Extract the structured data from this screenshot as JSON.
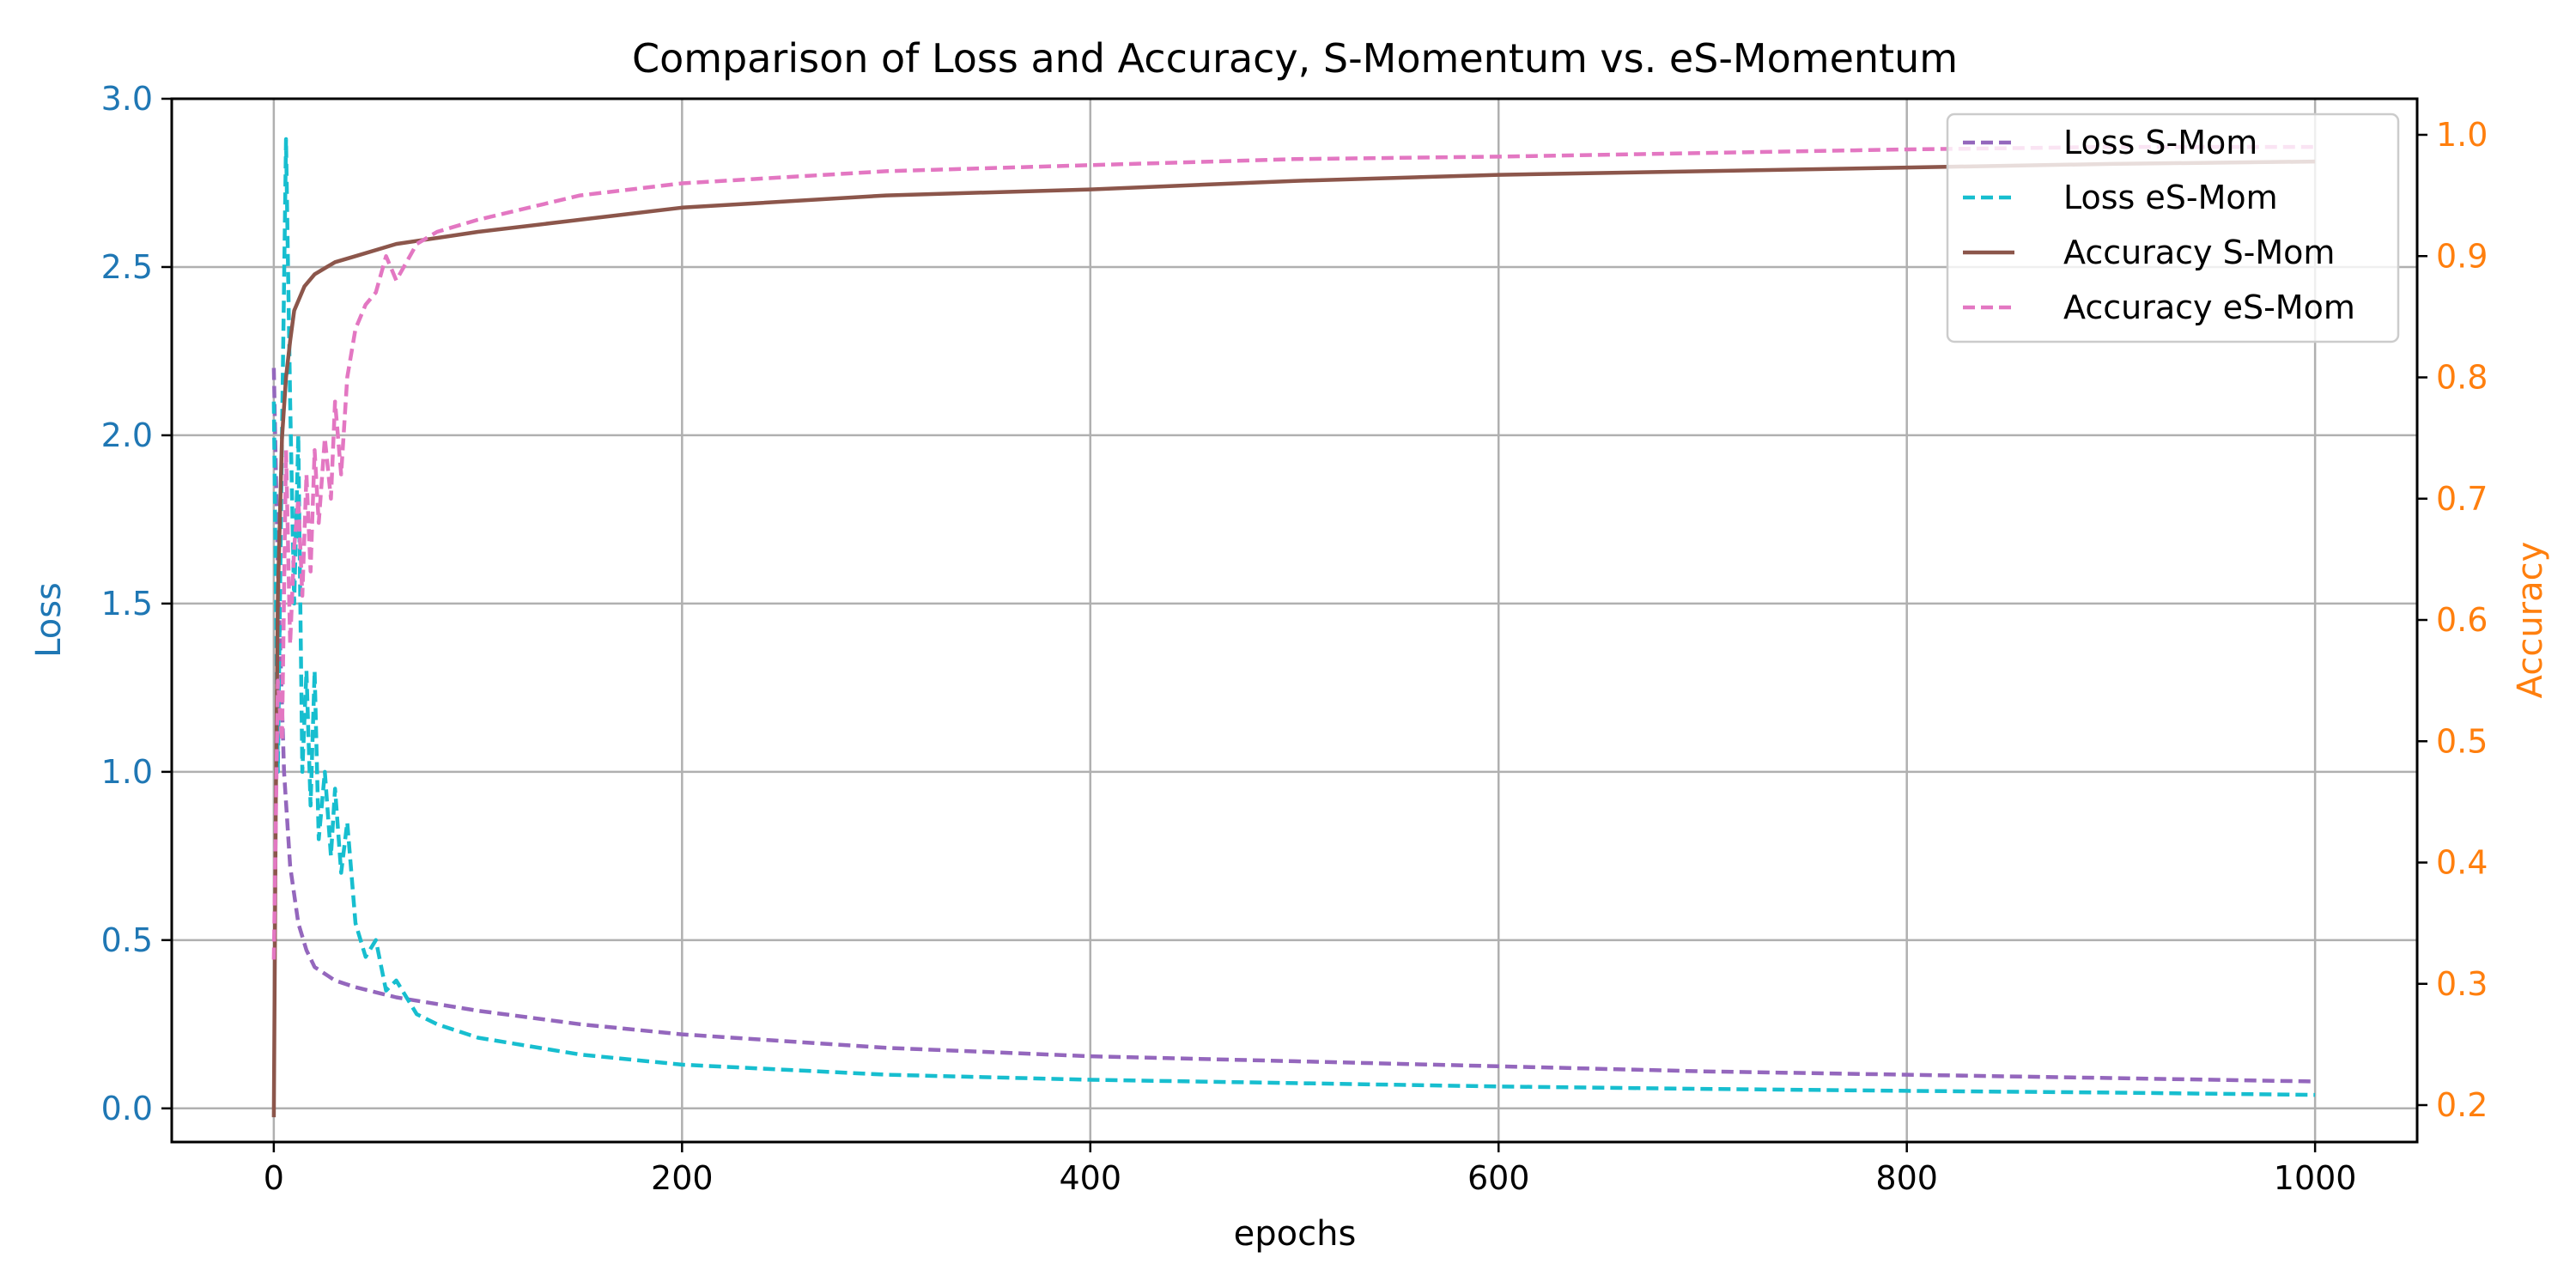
{
  "chart_data": {
    "type": "line",
    "title": "Comparison of Loss and Accuracy, S-Momentum vs. eS-Momentum",
    "xlabel": "epochs",
    "ylabel_left": "Loss",
    "ylabel_right": "Accuracy",
    "xlim": [
      -50,
      1050
    ],
    "ylim_left": [
      -0.1,
      3.0
    ],
    "ylim_right": [
      0.2,
      1.0
    ],
    "x_ticks": [
      0,
      200,
      400,
      600,
      800,
      1000
    ],
    "y_left_ticks": [
      "0.0",
      "0.5",
      "1.0",
      "1.5",
      "2.0",
      "2.5",
      "3.0"
    ],
    "y_right_ticks": [
      "0.2",
      "0.3",
      "0.4",
      "0.5",
      "0.6",
      "0.7",
      "0.8",
      "0.9",
      "1.0"
    ],
    "grid": true,
    "legend_position": "upper-right",
    "colors": {
      "left_axis": "#1f77b4",
      "right_axis": "#ff7f0e",
      "loss_s_mom": "#9467bd",
      "loss_es_mom": "#17becf",
      "acc_s_mom": "#8c564b",
      "acc_es_mom": "#e377c2"
    },
    "series": [
      {
        "name": "Loss  S-Mom",
        "axis": "left",
        "style": "dashed",
        "color": "#9467bd",
        "x": [
          0,
          2,
          5,
          8,
          12,
          16,
          20,
          30,
          40,
          60,
          80,
          100,
          150,
          200,
          300,
          400,
          500,
          600,
          700,
          800,
          900,
          1000
        ],
        "y": [
          2.2,
          1.6,
          1.0,
          0.72,
          0.55,
          0.47,
          0.42,
          0.38,
          0.36,
          0.33,
          0.31,
          0.29,
          0.25,
          0.22,
          0.18,
          0.155,
          0.14,
          0.125,
          0.11,
          0.1,
          0.09,
          0.08
        ]
      },
      {
        "name": "Loss eS-Mom",
        "axis": "left",
        "style": "dashed",
        "color": "#17becf",
        "x": [
          0,
          2,
          4,
          6,
          8,
          10,
          12,
          14,
          16,
          18,
          20,
          22,
          25,
          28,
          30,
          33,
          36,
          40,
          45,
          50,
          55,
          60,
          70,
          80,
          100,
          150,
          200,
          300,
          400,
          500,
          600,
          700,
          800,
          900,
          1000
        ],
        "y": [
          2.1,
          1.0,
          2.0,
          2.88,
          2.1,
          1.5,
          2.0,
          1.0,
          1.3,
          0.9,
          1.3,
          0.8,
          1.0,
          0.75,
          0.95,
          0.7,
          0.85,
          0.55,
          0.45,
          0.5,
          0.35,
          0.38,
          0.28,
          0.25,
          0.21,
          0.16,
          0.13,
          0.1,
          0.085,
          0.075,
          0.065,
          0.058,
          0.052,
          0.047,
          0.04
        ]
      },
      {
        "name": "Accuracy  S-Mom",
        "axis": "right",
        "style": "solid",
        "color": "#8c564b",
        "x": [
          0,
          1,
          2,
          4,
          6,
          8,
          10,
          15,
          20,
          30,
          40,
          60,
          80,
          100,
          150,
          200,
          300,
          400,
          500,
          600,
          700,
          800,
          900,
          1000
        ],
        "y": [
          0.19,
          0.45,
          0.62,
          0.75,
          0.8,
          0.83,
          0.855,
          0.875,
          0.885,
          0.895,
          0.9,
          0.91,
          0.915,
          0.92,
          0.93,
          0.94,
          0.95,
          0.955,
          0.962,
          0.967,
          0.97,
          0.973,
          0.976,
          0.978
        ]
      },
      {
        "name": "Accuracy eS-Mom",
        "axis": "right",
        "style": "dashed",
        "color": "#e377c2",
        "x": [
          0,
          2,
          4,
          6,
          8,
          10,
          12,
          14,
          16,
          18,
          20,
          22,
          25,
          28,
          30,
          33,
          36,
          40,
          45,
          50,
          55,
          60,
          70,
          80,
          100,
          150,
          200,
          300,
          400,
          500,
          600,
          700,
          800,
          900,
          1000
        ],
        "y": [
          0.32,
          0.55,
          0.5,
          0.74,
          0.58,
          0.66,
          0.7,
          0.62,
          0.72,
          0.64,
          0.74,
          0.68,
          0.75,
          0.7,
          0.78,
          0.72,
          0.8,
          0.84,
          0.86,
          0.87,
          0.9,
          0.88,
          0.91,
          0.92,
          0.93,
          0.95,
          0.96,
          0.97,
          0.975,
          0.98,
          0.982,
          0.985,
          0.988,
          0.99,
          0.99
        ]
      }
    ]
  }
}
